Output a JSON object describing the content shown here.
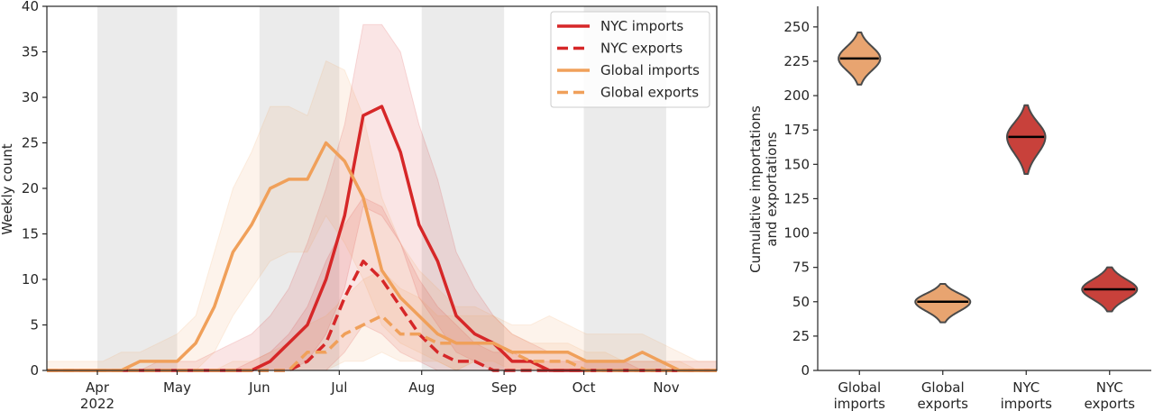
{
  "chart_data": [
    {
      "type": "line",
      "title": "",
      "ylabel": "Weekly count",
      "ylim": [
        0,
        40
      ],
      "yticks": [
        0,
        5,
        10,
        15,
        20,
        25,
        30,
        35,
        40
      ],
      "xlim": [
        "2022-03-13",
        "2022-11-20"
      ],
      "xticks": [
        {
          "date": "2022-04-01",
          "label": "Apr",
          "label2": "2022"
        },
        {
          "date": "2022-05-01",
          "label": "May",
          "label2": ""
        },
        {
          "date": "2022-06-01",
          "label": "Jun",
          "label2": ""
        },
        {
          "date": "2022-07-01",
          "label": "Jul",
          "label2": ""
        },
        {
          "date": "2022-08-01",
          "label": "Aug",
          "label2": ""
        },
        {
          "date": "2022-09-01",
          "label": "Sep",
          "label2": ""
        },
        {
          "date": "2022-10-01",
          "label": "Oct",
          "label2": ""
        },
        {
          "date": "2022-11-01",
          "label": "Nov",
          "label2": ""
        }
      ],
      "shaded_months": [
        [
          "2022-04-01",
          "2022-05-01"
        ],
        [
          "2022-06-01",
          "2022-07-01"
        ],
        [
          "2022-08-01",
          "2022-09-01"
        ],
        [
          "2022-10-01",
          "2022-11-01"
        ]
      ],
      "x": [
        "2022-03-13",
        "2022-03-20",
        "2022-03-27",
        "2022-04-03",
        "2022-04-10",
        "2022-04-17",
        "2022-04-24",
        "2022-05-01",
        "2022-05-08",
        "2022-05-15",
        "2022-05-22",
        "2022-05-29",
        "2022-06-05",
        "2022-06-12",
        "2022-06-19",
        "2022-06-26",
        "2022-07-03",
        "2022-07-10",
        "2022-07-17",
        "2022-07-24",
        "2022-07-31",
        "2022-08-07",
        "2022-08-14",
        "2022-08-21",
        "2022-08-28",
        "2022-09-04",
        "2022-09-11",
        "2022-09-18",
        "2022-09-25",
        "2022-10-02",
        "2022-10-09",
        "2022-10-16",
        "2022-10-23",
        "2022-10-30",
        "2022-11-06",
        "2022-11-13",
        "2022-11-20"
      ],
      "legend_position": "top-right",
      "series": [
        {
          "name": "NYC imports",
          "style": "solid",
          "color": "#d62728",
          "values": [
            0,
            0,
            0,
            0,
            0,
            0,
            0,
            0,
            0,
            0,
            0,
            0,
            1,
            3,
            5,
            10,
            17,
            28,
            29,
            24,
            16,
            12,
            6,
            4,
            3,
            1,
            1,
            0,
            0,
            0,
            0,
            0,
            0,
            0,
            0,
            0,
            0
          ],
          "lower": [
            0,
            0,
            0,
            0,
            0,
            0,
            0,
            0,
            0,
            0,
            0,
            0,
            0,
            0,
            1,
            4,
            9,
            18,
            17,
            14,
            8,
            5,
            2,
            1,
            0,
            0,
            0,
            0,
            0,
            0,
            0,
            0,
            0,
            0,
            0,
            0,
            0
          ],
          "upper": [
            0,
            0,
            0,
            0,
            0,
            0,
            1,
            1,
            1,
            2,
            3,
            4,
            6,
            9,
            14,
            20,
            27,
            38,
            38,
            35,
            27,
            21,
            13,
            9,
            6,
            4,
            3,
            2,
            2,
            1,
            1,
            1,
            1,
            1,
            1,
            1,
            1
          ]
        },
        {
          "name": "NYC exports",
          "style": "dashed",
          "color": "#d62728",
          "values": [
            0,
            0,
            0,
            0,
            0,
            0,
            0,
            0,
            0,
            0,
            0,
            0,
            0,
            0,
            1,
            3,
            8,
            12,
            10,
            7,
            4,
            2,
            1,
            1,
            0,
            0,
            0,
            0,
            0,
            0,
            0,
            0,
            0,
            0,
            0,
            0,
            0
          ],
          "lower": [
            0,
            0,
            0,
            0,
            0,
            0,
            0,
            0,
            0,
            0,
            0,
            0,
            0,
            0,
            0,
            0,
            2,
            5,
            4,
            2,
            1,
            0,
            0,
            0,
            0,
            0,
            0,
            0,
            0,
            0,
            0,
            0,
            0,
            0,
            0,
            0,
            0
          ],
          "upper": [
            0,
            0,
            0,
            0,
            0,
            0,
            0,
            0,
            0,
            0,
            0,
            1,
            2,
            4,
            7,
            12,
            16,
            19,
            18,
            14,
            10,
            7,
            5,
            3,
            2,
            2,
            1,
            1,
            1,
            1,
            1,
            1,
            0,
            0,
            0,
            0,
            0
          ]
        },
        {
          "name": "Global imports",
          "style": "solid",
          "color": "#f0a05a",
          "values": [
            0,
            0,
            0,
            0,
            0,
            1,
            1,
            1,
            3,
            7,
            13,
            16,
            20,
            21,
            21,
            25,
            23,
            19,
            11,
            8,
            6,
            4,
            3,
            3,
            3,
            2,
            2,
            2,
            2,
            1,
            1,
            1,
            2,
            1,
            0,
            0,
            0
          ],
          "lower": [
            0,
            0,
            0,
            0,
            0,
            0,
            0,
            0,
            0,
            2,
            6,
            9,
            12,
            13,
            13,
            17,
            14,
            10,
            5,
            3,
            2,
            1,
            0,
            1,
            1,
            0,
            0,
            0,
            0,
            0,
            0,
            0,
            0,
            0,
            0,
            0,
            0
          ],
          "upper": [
            1,
            1,
            1,
            1,
            2,
            2,
            3,
            4,
            6,
            13,
            20,
            24,
            29,
            29,
            28,
            34,
            33,
            28,
            19,
            14,
            11,
            9,
            7,
            7,
            6,
            5,
            5,
            6,
            5,
            4,
            4,
            4,
            4,
            3,
            2,
            1,
            1
          ]
        },
        {
          "name": "Global exports",
          "style": "dashed",
          "color": "#f0a05a",
          "values": [
            0,
            0,
            0,
            0,
            0,
            0,
            0,
            0,
            0,
            0,
            0,
            0,
            0,
            0,
            2,
            2,
            4,
            5,
            6,
            4,
            4,
            3,
            3,
            3,
            3,
            2,
            1,
            1,
            1,
            0,
            0,
            0,
            0,
            0,
            0,
            0,
            0
          ],
          "lower": [
            0,
            0,
            0,
            0,
            0,
            0,
            0,
            0,
            0,
            0,
            0,
            0,
            0,
            0,
            0,
            0,
            1,
            1,
            2,
            1,
            1,
            1,
            0,
            1,
            0,
            0,
            0,
            0,
            0,
            0,
            0,
            0,
            0,
            0,
            0,
            0,
            0
          ],
          "upper": [
            0,
            0,
            0,
            0,
            0,
            0,
            0,
            0,
            0,
            0,
            1,
            1,
            2,
            3,
            5,
            6,
            8,
            10,
            11,
            9,
            8,
            6,
            6,
            6,
            6,
            4,
            3,
            3,
            3,
            2,
            2,
            1,
            1,
            1,
            1,
            0,
            0
          ]
        }
      ]
    },
    {
      "type": "violin",
      "title": "",
      "ylabel_lines": [
        "Cumulative importations",
        "and exportations"
      ],
      "ylim": [
        0,
        265
      ],
      "yticks": [
        0,
        25,
        50,
        75,
        100,
        125,
        150,
        175,
        200,
        225,
        250
      ],
      "categories": [
        {
          "line1": "Global",
          "line2": "imports"
        },
        {
          "line1": "Global",
          "line2": "exports"
        },
        {
          "line1": "NYC",
          "line2": "imports"
        },
        {
          "line1": "NYC",
          "line2": "exports"
        }
      ],
      "violins": [
        {
          "median": 227,
          "min": 208,
          "max": 246,
          "half_width": 0.25,
          "color": "#e8a470"
        },
        {
          "median": 50,
          "min": 35,
          "max": 63,
          "half_width": 0.33,
          "color": "#e8a470"
        },
        {
          "median": 170,
          "min": 143,
          "max": 193,
          "half_width": 0.23,
          "color": "#c8413b"
        },
        {
          "median": 59,
          "min": 43,
          "max": 75,
          "half_width": 0.33,
          "color": "#c8413b"
        }
      ]
    }
  ]
}
